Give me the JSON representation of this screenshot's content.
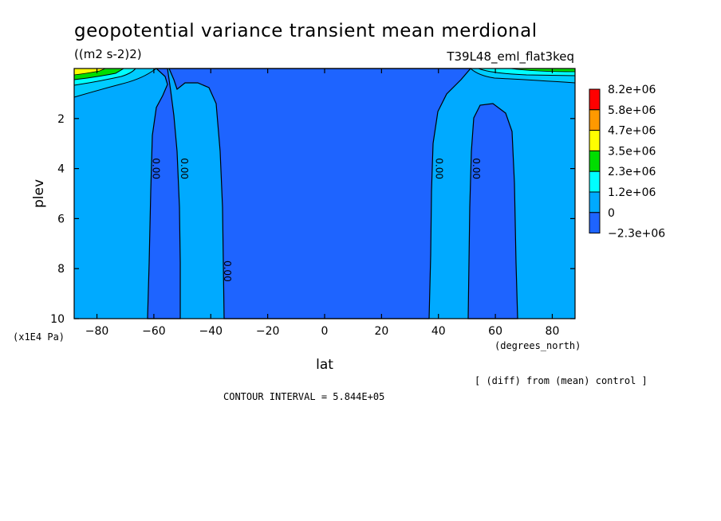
{
  "chart_data": {
    "type": "heatmap",
    "title": "geopotential variance transient mean merdional",
    "units": "((m2 s-2)2)",
    "run_name": "T39L48_eml_flat3keq",
    "xlabel": "lat",
    "x_units": "(degrees_north)",
    "ylabel": "plev",
    "y_units": "(x1E4 Pa)",
    "xlim": [
      -88,
      88
    ],
    "ylim": [
      0,
      10
    ],
    "y_inverted": true,
    "x_ticks": [
      -80,
      -60,
      -40,
      -20,
      0,
      20,
      40,
      60,
      80
    ],
    "x_tick_labels": [
      "−80",
      "−60",
      "−40",
      "−20",
      "0",
      "20",
      "40",
      "60",
      "80"
    ],
    "y_ticks": [
      2,
      4,
      6,
      8,
      10
    ],
    "y_tick_labels": [
      "2",
      "4",
      "6",
      "8",
      "10"
    ],
    "contour_interval_text": "CONTOUR INTERVAL = 5.844E+05",
    "footnote": "[ (diff) from (mean) control ]",
    "legend": {
      "labels": [
        "8.2e+06",
        "5.8e+06",
        "4.7e+06",
        "3.5e+06",
        "2.3e+06",
        "1.2e+06",
        "0",
        "−2.3e+06"
      ],
      "colors": [
        "#ff0000",
        "#ff9900",
        "#ffff00",
        "#00dd00",
        "#00ffff",
        "#00aaff",
        "#1e64ff"
      ],
      "placement": "right"
    },
    "contour_labels": [
      {
        "text": "0.00",
        "lat": -61.5,
        "plev": 4.0
      },
      {
        "text": "0.00",
        "lat": -51.5,
        "plev": 4.0
      },
      {
        "text": "0.00",
        "lat": -36.5,
        "plev": 8.1
      },
      {
        "text": "0.00",
        "lat": 38.0,
        "plev": 4.0
      },
      {
        "text": "0.00",
        "lat": 51.0,
        "plev": 4.0
      }
    ],
    "regions": [
      {
        "name": "negative-sh-band-1",
        "value_range": "-2.3e+06 to 0",
        "lat_range": [
          -61.5,
          -51.5
        ]
      },
      {
        "name": "negative-center",
        "value_range": "-2.3e+06 to 0",
        "lat_range": [
          -36.5,
          38.0
        ]
      },
      {
        "name": "negative-nh-band",
        "value_range": "-2.3e+06 to 0",
        "lat_range": [
          51.0,
          65.5
        ]
      },
      {
        "name": "positive-top-sh",
        "value_range": "1.2e+06 to 8.2e+06",
        "lat_range": [
          -88,
          -60
        ],
        "plev_range": [
          0,
          0.6
        ]
      },
      {
        "name": "positive-top-nh",
        "value_range": "1.2e+06 to 4.7e+06",
        "lat_range": [
          48,
          88
        ],
        "plev_range": [
          0,
          0.3
        ]
      }
    ]
  }
}
